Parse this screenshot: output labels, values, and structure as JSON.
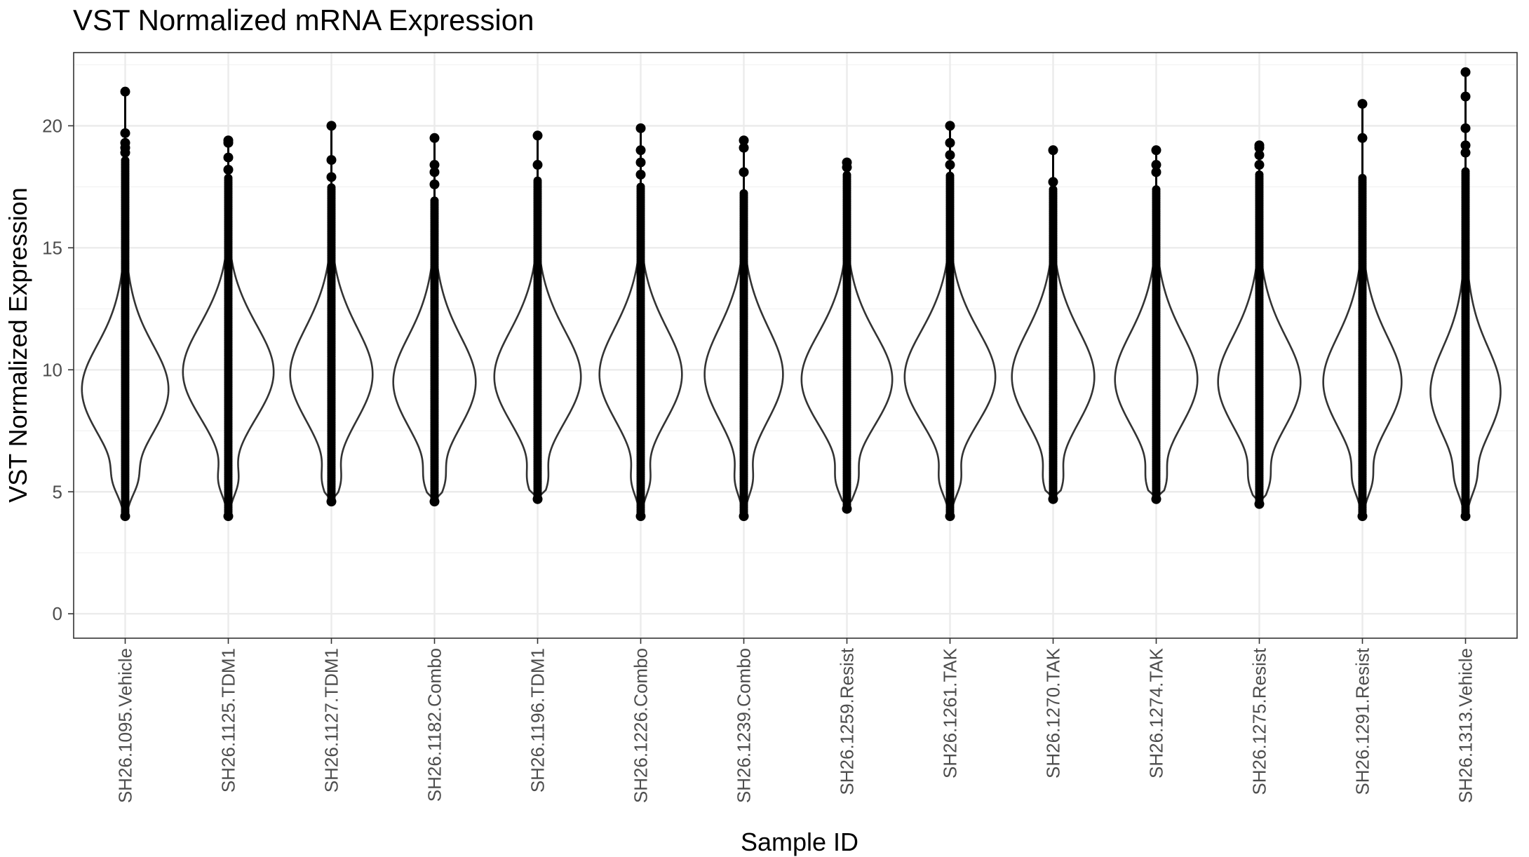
{
  "chart_data": {
    "type": "violin",
    "title": "VST Normalized mRNA Expression",
    "xlabel": "Sample ID",
    "ylabel": "VST Normalized Expression",
    "ylim": [
      -1,
      23
    ],
    "yticks": [
      0,
      5,
      10,
      15,
      20
    ],
    "grid": true,
    "theme": "bw",
    "colors": {
      "violin": "#333333",
      "points": "#000000",
      "grid_major": "#ebebeb",
      "grid_minor": "#f4f4f4",
      "panel_border": "#333333"
    },
    "categories": [
      "SH26.1095.Vehicle",
      "SH26.1125.TDM1",
      "SH26.1127.TDM1",
      "SH26.1182.Combo",
      "SH26.1196.TDM1",
      "SH26.1226.Combo",
      "SH26.1239.Combo",
      "SH26.1259.Resist",
      "SH26.1261.TAK",
      "SH26.1270.TAK",
      "SH26.1274.TAK",
      "SH26.1275.Resist",
      "SH26.1291.Resist",
      "SH26.1313.Vehicle"
    ],
    "series": [
      {
        "name": "SH26.1095.Vehicle",
        "min": 4.0,
        "max": 21.4,
        "dense_top": 18.6,
        "outliers": [
          21.4,
          19.7,
          19.3,
          19.1,
          18.9
        ],
        "mode": 9.2,
        "max_halfwidth": 0.42
      },
      {
        "name": "SH26.1125.TDM1",
        "min": 4.0,
        "max": 19.4,
        "dense_top": 17.9,
        "outliers": [
          19.4,
          19.3,
          18.7,
          18.2
        ],
        "mode": 9.9,
        "max_halfwidth": 0.44
      },
      {
        "name": "SH26.1127.TDM1",
        "min": 4.6,
        "max": 20.0,
        "dense_top": 17.5,
        "outliers": [
          20.0,
          18.6,
          17.9
        ],
        "mode": 9.8,
        "max_halfwidth": 0.4
      },
      {
        "name": "SH26.1182.Combo",
        "min": 4.6,
        "max": 19.5,
        "dense_top": 17.0,
        "outliers": [
          19.5,
          18.4,
          18.1,
          17.6
        ],
        "mode": 9.5,
        "max_halfwidth": 0.4
      },
      {
        "name": "SH26.1196.TDM1",
        "min": 4.7,
        "max": 19.6,
        "dense_top": 17.8,
        "outliers": [
          19.6,
          18.4
        ],
        "mode": 9.7,
        "max_halfwidth": 0.42
      },
      {
        "name": "SH26.1226.Combo",
        "min": 4.0,
        "max": 19.9,
        "dense_top": 17.5,
        "outliers": [
          19.9,
          19.0,
          18.5,
          18.0
        ],
        "mode": 9.8,
        "max_halfwidth": 0.4
      },
      {
        "name": "SH26.1239.Combo",
        "min": 4.0,
        "max": 19.4,
        "dense_top": 17.3,
        "outliers": [
          19.4,
          19.1,
          18.1
        ],
        "mode": 9.8,
        "max_halfwidth": 0.38
      },
      {
        "name": "SH26.1259.Resist",
        "min": 4.3,
        "max": 18.5,
        "dense_top": 18.0,
        "outliers": [
          18.5,
          18.3
        ],
        "mode": 9.6,
        "max_halfwidth": 0.44
      },
      {
        "name": "SH26.1261.TAK",
        "min": 4.0,
        "max": 20.0,
        "dense_top": 18.0,
        "outliers": [
          20.0,
          19.3,
          18.8,
          18.4
        ],
        "mode": 9.7,
        "max_halfwidth": 0.44
      },
      {
        "name": "SH26.1270.TAK",
        "min": 4.7,
        "max": 19.0,
        "dense_top": 17.4,
        "outliers": [
          19.0,
          17.7
        ],
        "mode": 9.7,
        "max_halfwidth": 0.4
      },
      {
        "name": "SH26.1274.TAK",
        "min": 4.7,
        "max": 19.0,
        "dense_top": 17.4,
        "outliers": [
          19.0,
          18.4,
          18.1
        ],
        "mode": 9.6,
        "max_halfwidth": 0.4
      },
      {
        "name": "SH26.1275.Resist",
        "min": 4.5,
        "max": 19.2,
        "dense_top": 18.0,
        "outliers": [
          19.2,
          19.1,
          18.8,
          18.4
        ],
        "mode": 9.5,
        "max_halfwidth": 0.4
      },
      {
        "name": "SH26.1291.Resist",
        "min": 4.0,
        "max": 20.9,
        "dense_top": 17.9,
        "outliers": [
          20.9,
          19.5
        ],
        "mode": 9.5,
        "max_halfwidth": 0.38
      },
      {
        "name": "SH26.1313.Vehicle",
        "min": 4.0,
        "max": 22.2,
        "dense_top": 18.2,
        "outliers": [
          22.2,
          21.2,
          19.9,
          19.2,
          18.9
        ],
        "mode": 9.1,
        "max_halfwidth": 0.34
      }
    ]
  }
}
